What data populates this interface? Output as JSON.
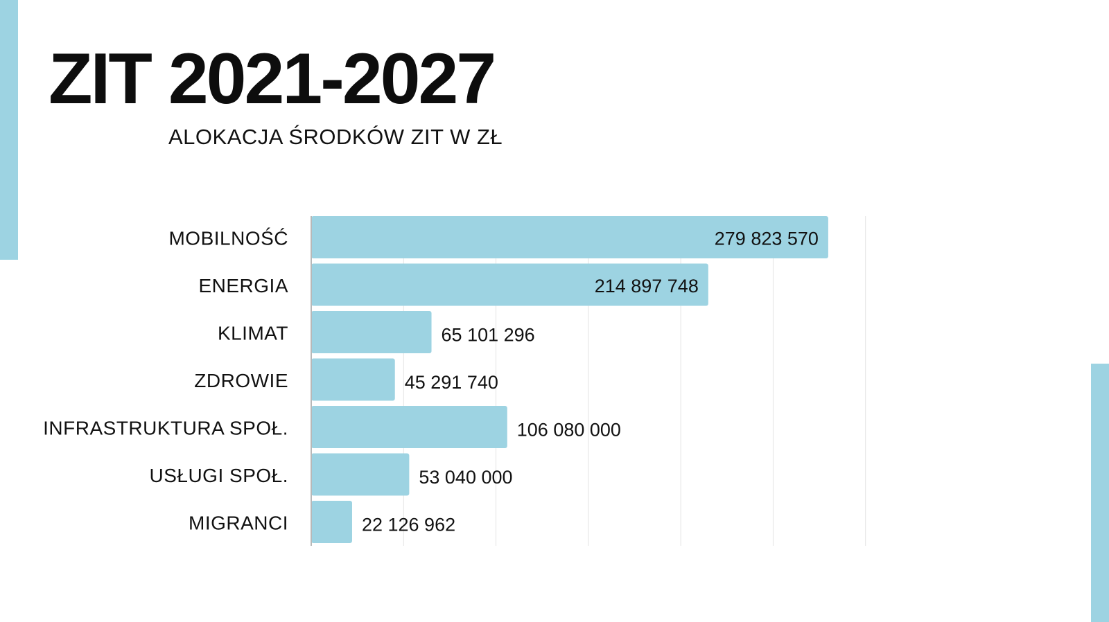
{
  "title": "ZIT 2021-2027",
  "subtitle": "ALOKACJA ŚRODKÓW ZIT W ZŁ",
  "colors": {
    "accent": "#9dd3e2",
    "bar": "#9dd3e2",
    "grid": "#e3e3e3",
    "axis": "#b8b8b8",
    "text": "#111111"
  },
  "chart_data": {
    "type": "bar",
    "orientation": "horizontal",
    "categories": [
      "MOBILNOŚĆ",
      "ENERGIA",
      "KLIMAT",
      "ZDROWIE",
      "INFRASTRUKTURA SPOŁ.",
      "USŁUGI SPOŁ.",
      "MIGRANCI"
    ],
    "values": [
      279823570,
      214897748,
      65101296,
      45291740,
      106080000,
      53040000,
      22126962
    ],
    "value_labels": [
      "279 823 570",
      "214 897 748",
      "65 101 296",
      "45 291 740",
      "106 080 000",
      "53 040 000",
      "22 126 962"
    ],
    "xlim": [
      0,
      350000000
    ],
    "grid": true,
    "x_tick_labels_visible": false
  }
}
